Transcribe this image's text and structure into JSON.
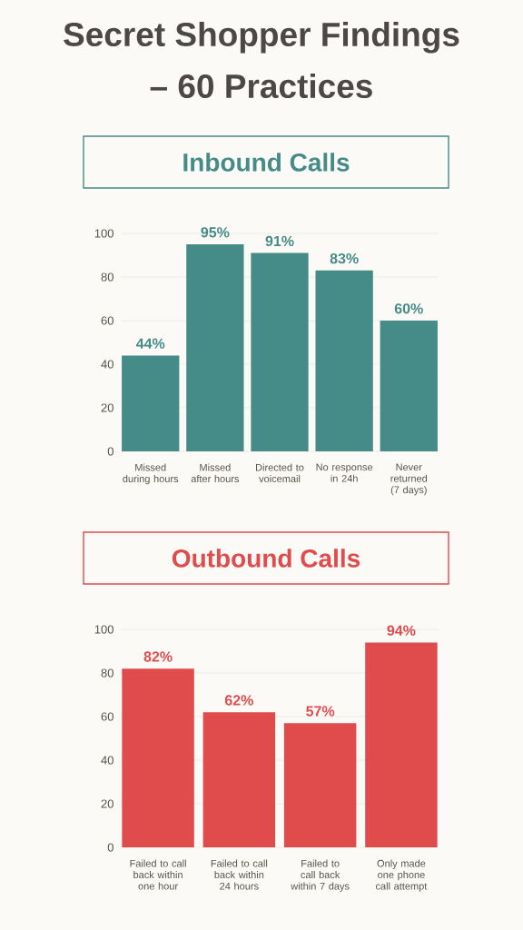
{
  "chart_data": [
    {
      "type": "other",
      "title": "Secret Shopper Findings – 60 Practices"
    },
    {
      "type": "bar",
      "title": "Inbound Calls",
      "categories": [
        "Missed during hours",
        "Missed after hours",
        "Directed to voicemail",
        "No response in 24h",
        "Never returned (7 days)"
      ],
      "values": [
        44,
        95,
        91,
        83,
        60
      ],
      "value_labels": [
        "44%",
        "95%",
        "91%",
        "83%",
        "60%"
      ],
      "color": "#458b88",
      "ylim": [
        0,
        100
      ],
      "yticks": [
        0,
        20,
        40,
        60,
        80,
        100
      ],
      "grid": "y"
    },
    {
      "type": "bar",
      "title": "Outbound Calls",
      "categories": [
        "Failed to call back within one hour",
        "Failed to call back within 24 hours",
        "Failed to call back within 7 days",
        "Only made one phone call attempt"
      ],
      "values": [
        82,
        62,
        57,
        94
      ],
      "value_labels": [
        "82%",
        "62%",
        "57%",
        "94%"
      ],
      "color": "#e04b4c",
      "ylim": [
        0,
        100
      ],
      "yticks": [
        0,
        20,
        40,
        60,
        80,
        100
      ],
      "grid": "y"
    }
  ]
}
